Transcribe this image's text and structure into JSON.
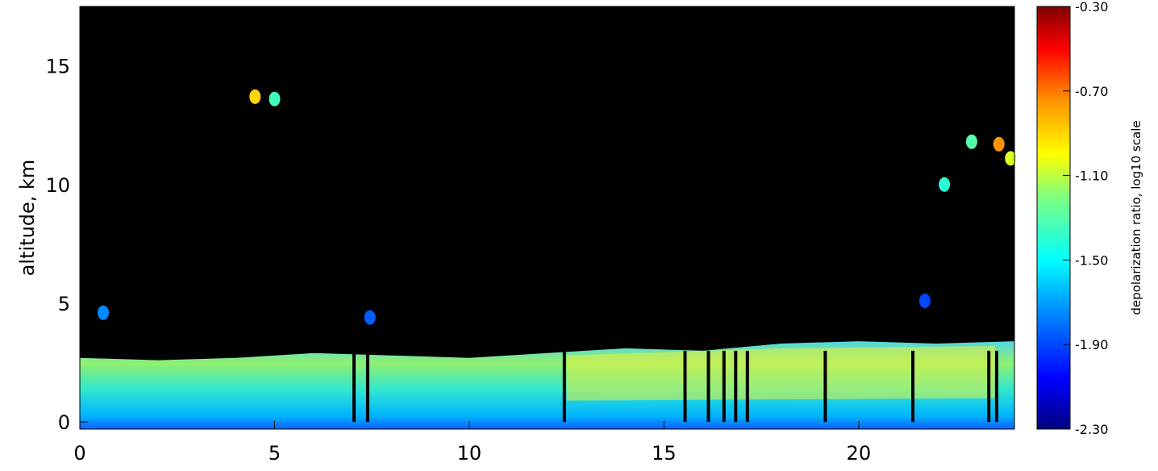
{
  "chart_data": {
    "type": "heatmap",
    "title": "",
    "xlabel": "",
    "ylabel": "altitude, km",
    "xlim": [
      0,
      24
    ],
    "ylim": [
      -0.3,
      17.5
    ],
    "x_ticks": [
      "0",
      "5",
      "10",
      "15",
      "20"
    ],
    "y_ticks": [
      "0",
      "5",
      "10",
      "15"
    ],
    "background_color": "#000000",
    "colorbar": {
      "label": "depolarization ratio, log10 scale",
      "range": [
        -2.3,
        -0.3
      ],
      "tick_labels": [
        "-0.30",
        "-0.70",
        "-1.10",
        "-1.50",
        "-1.90",
        "-2.30"
      ],
      "colormap": "rainbow (dark blue to dark red)"
    },
    "features": [
      {
        "name": "boundary-layer aerosol",
        "x_range": [
          0,
          24
        ],
        "altitude_range": [
          0,
          3.5
        ],
        "value_range": [
          -1.9,
          -1.1
        ]
      },
      {
        "name": "cloud 4.5h",
        "x": 4.5,
        "altitude": 13.7,
        "value": -0.9
      },
      {
        "name": "cloud 5h",
        "x": 5.0,
        "altitude": 13.6,
        "value": -1.35
      },
      {
        "name": "cloud 0.6h",
        "x": 0.6,
        "altitude": 4.6,
        "value": -1.75
      },
      {
        "name": "cloud 7.5h",
        "x": 7.45,
        "altitude": 4.4,
        "value": -1.85
      },
      {
        "name": "cloud 22.2h",
        "x": 22.2,
        "altitude": 10.0,
        "value": -1.4
      },
      {
        "name": "cloud 22.9h",
        "x": 22.9,
        "altitude": 11.8,
        "value": -1.3
      },
      {
        "name": "cloud 23.6h",
        "x": 23.6,
        "altitude": 11.7,
        "value": -0.75
      },
      {
        "name": "cloud 23.9h",
        "x": 23.9,
        "altitude": 11.1,
        "value": -1.05
      },
      {
        "name": "cloud 21.7h",
        "x": 21.7,
        "altitude": 5.1,
        "value": -1.9
      }
    ]
  }
}
